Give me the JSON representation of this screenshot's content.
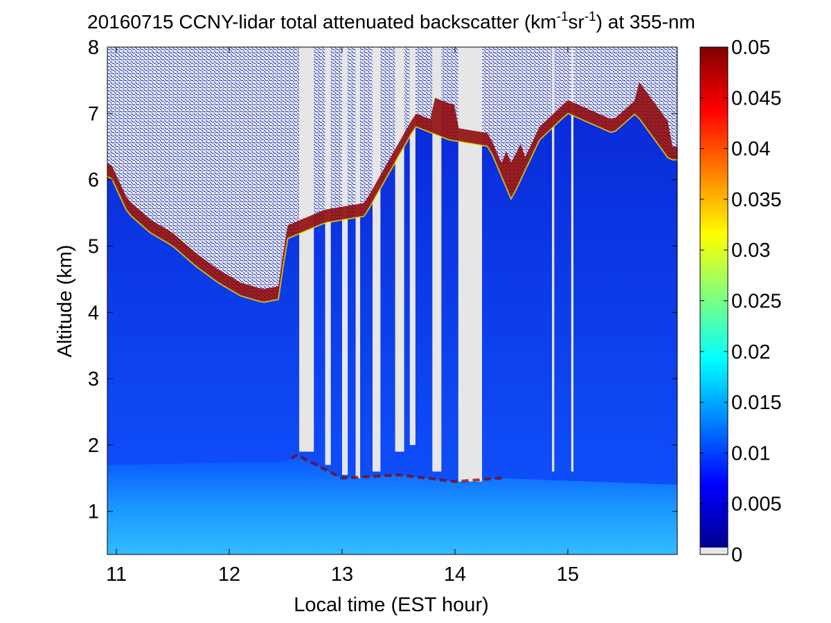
{
  "chart_data": {
    "type": "heatmap",
    "title": {
      "prefix": "20160715 CCNY-lidar total attenuated backscatter (km",
      "exp1": "-1",
      "mid": "sr",
      "exp2": "-1",
      "suffix": ") at 355-nm"
    },
    "xlabel": "Local time (EST hour)",
    "ylabel": "Altitude (km)",
    "xlim": [
      10.92,
      15.97
    ],
    "ylim": [
      0.35,
      8
    ],
    "x_ticks": [
      11,
      12,
      13,
      14,
      15
    ],
    "y_ticks": [
      1,
      2,
      3,
      4,
      5,
      6,
      7,
      8
    ],
    "colorbar": {
      "clim": [
        0,
        0.05
      ],
      "ticks": [
        0,
        0.005,
        0.01,
        0.015,
        0.02,
        0.025,
        0.03,
        0.035,
        0.04,
        0.045,
        0.05
      ],
      "tick_labels": [
        "0",
        "0.005",
        "0.01",
        "0.015",
        "0.02",
        "0.025",
        "0.03",
        "0.035",
        "0.04",
        "0.045",
        "0.05"
      ],
      "colormap": "jet",
      "no_data_color": "#e6e6e6"
    },
    "cloud_base_km": [
      {
        "t": 10.95,
        "alt": 6.05
      },
      {
        "t": 11.1,
        "alt": 5.5
      },
      {
        "t": 11.3,
        "alt": 5.2
      },
      {
        "t": 11.5,
        "alt": 5.0
      },
      {
        "t": 11.7,
        "alt": 4.7
      },
      {
        "t": 11.9,
        "alt": 4.45
      },
      {
        "t": 12.1,
        "alt": 4.25
      },
      {
        "t": 12.3,
        "alt": 4.15
      },
      {
        "t": 12.45,
        "alt": 4.2
      },
      {
        "t": 12.5,
        "alt": 5.1
      },
      {
        "t": 12.85,
        "alt": 5.35
      },
      {
        "t": 13.2,
        "alt": 5.45
      },
      {
        "t": 13.65,
        "alt": 6.8
      },
      {
        "t": 13.95,
        "alt": 6.6
      },
      {
        "t": 14.3,
        "alt": 6.5
      },
      {
        "t": 14.5,
        "alt": 5.7
      },
      {
        "t": 14.75,
        "alt": 6.6
      },
      {
        "t": 15.0,
        "alt": 7.0
      },
      {
        "t": 15.4,
        "alt": 6.7
      },
      {
        "t": 15.6,
        "alt": 7.0
      },
      {
        "t": 15.9,
        "alt": 6.3
      }
    ],
    "boundary_layer_top_km": [
      {
        "t": 10.95,
        "alt": 1.7
      },
      {
        "t": 12.5,
        "alt": 1.75
      },
      {
        "t": 12.6,
        "alt": 1.85
      },
      {
        "t": 13.0,
        "alt": 1.5
      },
      {
        "t": 13.5,
        "alt": 1.55
      },
      {
        "t": 14.0,
        "alt": 1.45
      },
      {
        "t": 14.4,
        "alt": 1.5
      },
      {
        "t": 15.97,
        "alt": 1.4
      }
    ],
    "clear_gap_columns": [
      {
        "t0": 12.62,
        "t1": 12.75,
        "alt_min": 1.9
      },
      {
        "t0": 12.85,
        "t1": 12.9,
        "alt_min": 1.7
      },
      {
        "t0": 13.0,
        "t1": 13.05,
        "alt_min": 1.55
      },
      {
        "t0": 13.12,
        "t1": 13.16,
        "alt_min": 1.5
      },
      {
        "t0": 13.27,
        "t1": 13.34,
        "alt_min": 1.6
      },
      {
        "t0": 13.47,
        "t1": 13.55,
        "alt_min": 1.9
      },
      {
        "t0": 13.6,
        "t1": 13.65,
        "alt_min": 2.0
      },
      {
        "t0": 13.8,
        "t1": 13.88,
        "alt_min": 1.6
      },
      {
        "t0": 14.03,
        "t1": 14.24,
        "alt_min": 1.45
      },
      {
        "t0": 14.86,
        "t1": 14.88,
        "alt_min": 1.6
      },
      {
        "t0": 15.03,
        "t1": 15.05,
        "alt_min": 1.6
      }
    ]
  }
}
